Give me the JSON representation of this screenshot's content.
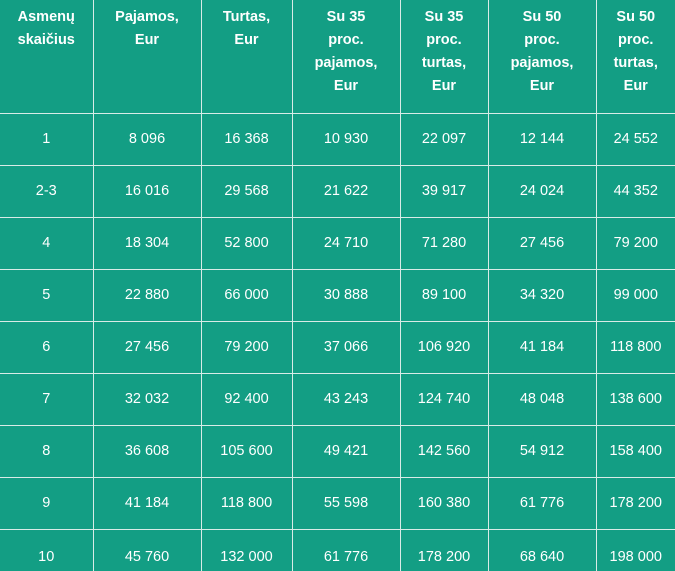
{
  "headers": [
    "Asmenų skaičius",
    "Pajamos, Eur",
    "Turtas, Eur",
    "Su 35 proc. pajamos, Eur",
    "Su 35 proc. turtas, Eur",
    "Su 50 proc. pajamos, Eur",
    "Su 50 proc. turtas, Eur"
  ],
  "rows": [
    [
      "1",
      "8 096",
      "16 368",
      "10 930",
      "22 097",
      "12 144",
      "24 552"
    ],
    [
      "2-3",
      "16 016",
      "29 568",
      "21 622",
      "39 917",
      "24 024",
      "44 352"
    ],
    [
      "4",
      "18 304",
      "52 800",
      "24 710",
      "71 280",
      "27 456",
      "79 200"
    ],
    [
      "5",
      "22 880",
      "66 000",
      "30 888",
      "89 100",
      "34 320",
      "99 000"
    ],
    [
      "6",
      "27 456",
      "79 200",
      "37 066",
      "106 920",
      "41 184",
      "118 800"
    ],
    [
      "7",
      "32 032",
      "92 400",
      "43 243",
      "124 740",
      "48 048",
      "138 600"
    ],
    [
      "8",
      "36 608",
      "105 600",
      "49 421",
      "142 560",
      "54 912",
      "158 400"
    ],
    [
      "9",
      "41 184",
      "118 800",
      "55 598",
      "160 380",
      "61 776",
      "178 200"
    ],
    [
      "10",
      "45 760",
      "132 000",
      "61 776",
      "178 200",
      "68 640",
      "198 000"
    ]
  ]
}
